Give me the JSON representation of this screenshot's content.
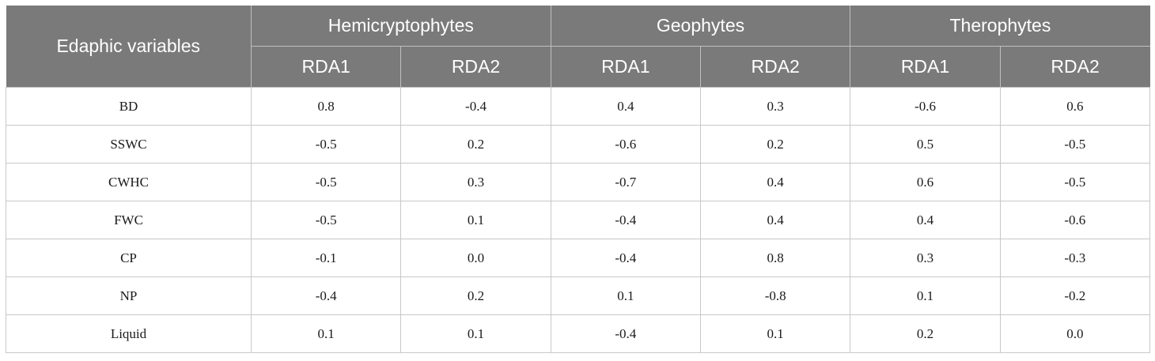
{
  "table": {
    "row_header_label": "Edaphic variables",
    "groups": [
      "Hemicryptophytes",
      "Geophytes",
      "Therophytes"
    ],
    "subheaders": [
      "RDA1",
      "RDA2",
      "RDA1",
      "RDA2",
      "RDA1",
      "RDA2"
    ],
    "rows": [
      {
        "label": "BD",
        "values": [
          "0.8",
          "-0.4",
          "0.4",
          "0.3",
          "-0.6",
          "0.6"
        ]
      },
      {
        "label": "SSWC",
        "values": [
          "-0.5",
          "0.2",
          "-0.6",
          "0.2",
          "0.5",
          "-0.5"
        ]
      },
      {
        "label": "CWHC",
        "values": [
          "-0.5",
          "0.3",
          "-0.7",
          "0.4",
          "0.6",
          "-0.5"
        ]
      },
      {
        "label": "FWC",
        "values": [
          "-0.5",
          "0.1",
          "-0.4",
          "0.4",
          "0.4",
          "-0.6"
        ]
      },
      {
        "label": "CP",
        "values": [
          "-0.1",
          "0.0",
          "-0.4",
          "0.8",
          "0.3",
          "-0.3"
        ]
      },
      {
        "label": "NP",
        "values": [
          "-0.4",
          "0.2",
          "0.1",
          "-0.8",
          "0.1",
          "-0.2"
        ]
      },
      {
        "label": "Liquid",
        "values": [
          "0.1",
          "0.1",
          "-0.4",
          "0.1",
          "0.2",
          "0.0"
        ]
      }
    ]
  }
}
